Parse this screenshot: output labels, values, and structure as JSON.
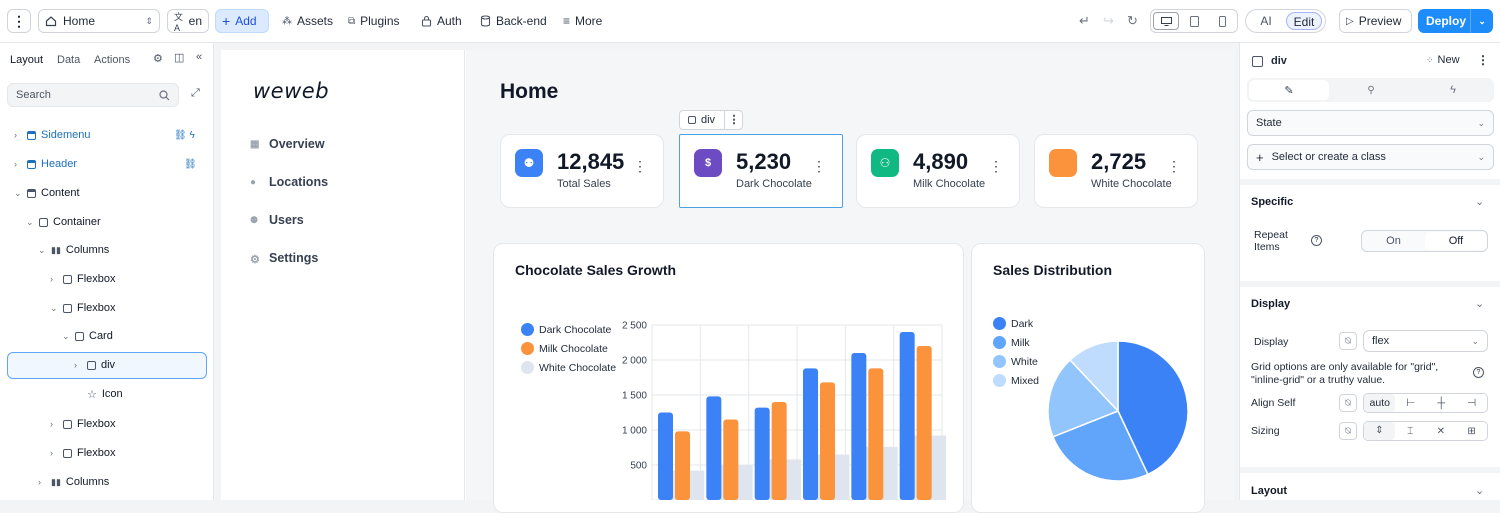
{
  "topbar": {
    "page_select": "Home",
    "lang": "en",
    "add": "Add",
    "assets": "Assets",
    "plugins": "Plugins",
    "auth": "Auth",
    "backend": "Back-end",
    "more": "More",
    "mode_ai": "AI",
    "mode_edit": "Edit",
    "preview": "Preview",
    "deploy": "Deploy",
    "accent": "#1d8cf8"
  },
  "left": {
    "tabs": [
      "Layout",
      "Data",
      "Actions"
    ],
    "search_placeholder": "Search",
    "tree": [
      {
        "label": "Sidemenu"
      },
      {
        "label": "Header"
      },
      {
        "label": "Content"
      },
      {
        "label": "Container"
      },
      {
        "label": "Columns"
      },
      {
        "label": "Flexbox"
      },
      {
        "label": "Flexbox"
      },
      {
        "label": "Card"
      },
      {
        "label": "div"
      },
      {
        "label": "Icon"
      },
      {
        "label": "Flexbox"
      },
      {
        "label": "Flexbox"
      },
      {
        "label": "Columns"
      }
    ]
  },
  "canvas": {
    "logo": "weweb",
    "nav": [
      "Overview",
      "Locations",
      "Users",
      "Settings"
    ],
    "page_title": "Home",
    "selection_tag": "div",
    "stats": [
      {
        "value": "12,845",
        "label": "Total Sales",
        "color": "#3b82f6"
      },
      {
        "value": "5,230",
        "label": "Dark Chocolate",
        "color": "#6d4bc3"
      },
      {
        "value": "4,890",
        "label": "Milk Chocolate",
        "color": "#10b981"
      },
      {
        "value": "2,725",
        "label": "White Chocolate",
        "color": "#fb923c"
      }
    ]
  },
  "chart_data": [
    {
      "type": "bar",
      "title": "Chocolate Sales Growth",
      "xlabel": "",
      "ylabel": "",
      "y_ticks": [
        "500",
        "1 000",
        "1 500",
        "2 000",
        "2 500"
      ],
      "ylim": [
        0,
        2500
      ],
      "legend_position": "left",
      "series": [
        {
          "name": "Dark Chocolate",
          "color": "#3b82f6",
          "values": [
            1250,
            1480,
            1320,
            1880,
            2100,
            2400
          ]
        },
        {
          "name": "Milk Chocolate",
          "color": "#fb923c",
          "values": [
            980,
            1150,
            1400,
            1680,
            1880,
            2200
          ]
        },
        {
          "name": "White Chocolate",
          "color": "#dfe5ee",
          "values": [
            420,
            500,
            580,
            650,
            760,
            920
          ]
        }
      ]
    },
    {
      "type": "pie",
      "title": "Sales Distribution",
      "legend_position": "left",
      "slices": [
        {
          "name": "Dark",
          "value": 43,
          "color": "#3b82f6"
        },
        {
          "name": "Milk",
          "value": 26,
          "color": "#60a5fa"
        },
        {
          "name": "White",
          "value": 19,
          "color": "#93c5fd"
        },
        {
          "name": "Mixed",
          "value": 12,
          "color": "#bfdbfe"
        }
      ]
    }
  ],
  "right": {
    "element": "div",
    "new": "New",
    "state": "State",
    "class_select": "Select or create a class",
    "specific": "Specific",
    "repeat_items": "Repeat Items",
    "on": "On",
    "off": "Off",
    "display_section": "Display",
    "display_label": "Display",
    "display_value": "flex",
    "grid_note": "Grid options are only available for \"grid\", \"inline-grid\" or a truthy value.",
    "align_self": "Align Self",
    "align_value": "auto",
    "sizing": "Sizing",
    "layout_section": "Layout"
  }
}
